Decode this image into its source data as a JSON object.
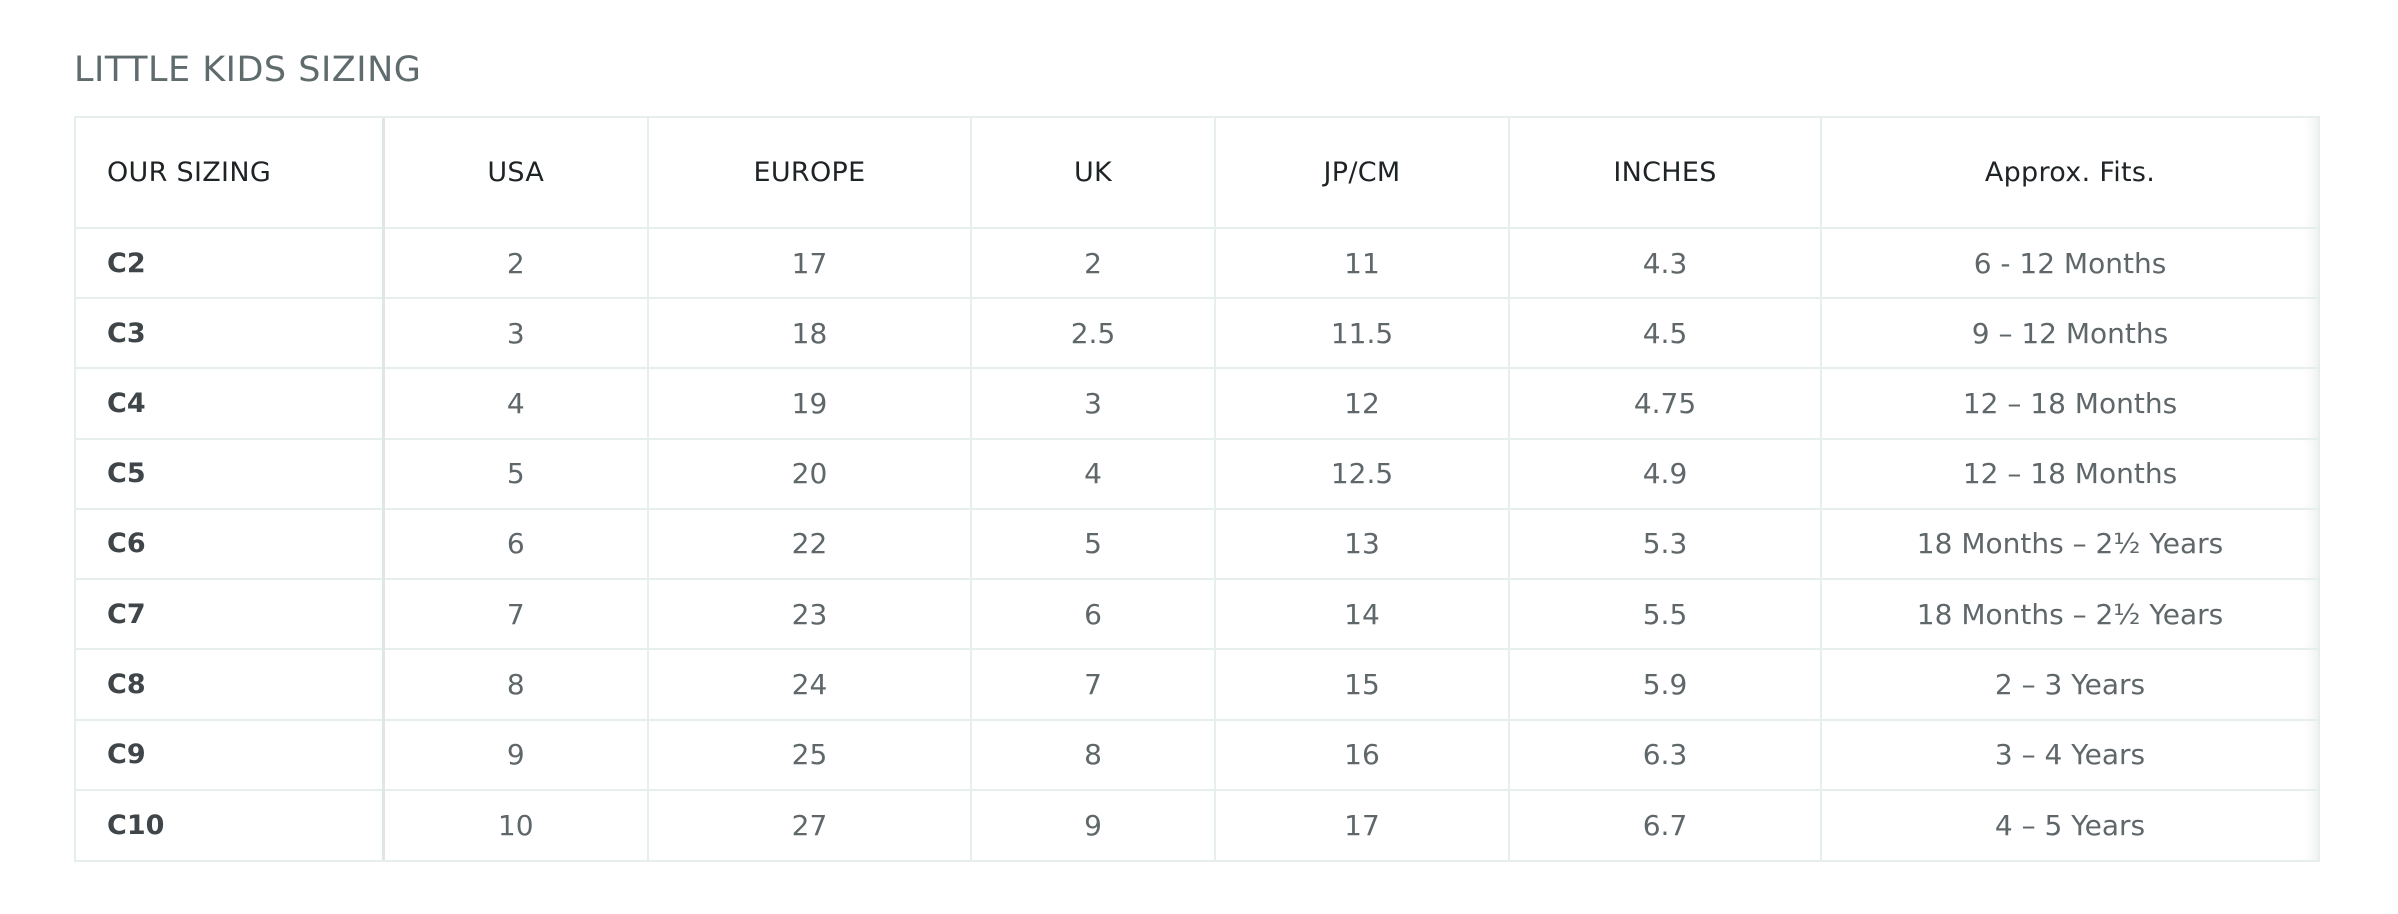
{
  "title": "LITTLE KIDS SIZING",
  "table": {
    "headers": [
      "OUR SIZING",
      "USA",
      "EUROPE",
      "UK",
      "JP/CM",
      "INCHES",
      "Approx. Fits."
    ],
    "rows": [
      [
        "C2",
        "2",
        "17",
        "2",
        "11",
        "4.3",
        "6 - 12 Months"
      ],
      [
        "C3",
        "3",
        "18",
        "2.5",
        "11.5",
        "4.5",
        "9 – 12 Months"
      ],
      [
        "C4",
        "4",
        "19",
        "3",
        "12",
        "4.75",
        "12 – 18 Months"
      ],
      [
        "C5",
        "5",
        "20",
        "4",
        "12.5",
        "4.9",
        "12 – 18 Months"
      ],
      [
        "C6",
        "6",
        "22",
        "5",
        "13",
        "5.3",
        "18 Months – 2½ Years"
      ],
      [
        "C7",
        "7",
        "23",
        "6",
        "14",
        "5.5",
        "18 Months – 2½ Years"
      ],
      [
        "C8",
        "8",
        "24",
        "7",
        "15",
        "5.9",
        "2 – 3 Years"
      ],
      [
        "C9",
        "9",
        "25",
        "8",
        "16",
        "6.3",
        "3 – 4 Years"
      ],
      [
        "C10",
        "10",
        "27",
        "9",
        "17",
        "6.7",
        "4 – 5 Years"
      ]
    ]
  },
  "colors": {
    "title_text": "#5f6b6d",
    "header_text": "#1e2325",
    "cell_text": "#5f676a",
    "border": "#e6eeee"
  }
}
